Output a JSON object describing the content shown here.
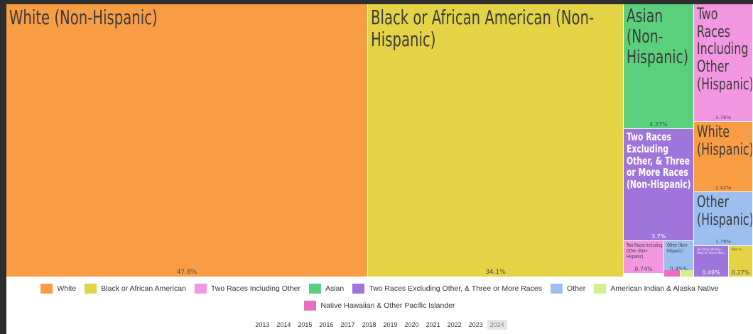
{
  "chart_data": {
    "type": "treemap",
    "tiles": [
      {
        "label": "White (Non-Hispanic)",
        "value_label": "47.8%",
        "value": 47.8,
        "group": "White"
      },
      {
        "label": "Black or African American (Non-Hispanic)",
        "value_label": "34.1%",
        "value": 34.1,
        "group": "Black or African American"
      },
      {
        "label": "Asian (Non-Hispanic)",
        "value_label": "4.27%",
        "value": 4.27,
        "group": "Asian"
      },
      {
        "label": "Two Races Excluding Other, & Three or More Races (Non-Hispanic)",
        "value_label": "3.7%",
        "value": 3.7,
        "group": "Two Races Excluding Other, & Three or More Races"
      },
      {
        "label": "Two Races Including Other (Non-Hispanic)",
        "value_label": "0.74%",
        "value": 0.74,
        "group": "Two Races Including Other"
      },
      {
        "label": "Other (Non-Hispanic)",
        "value_label": "0.45%",
        "value": 0.45,
        "group": "Other"
      },
      {
        "label": "",
        "value_label": "",
        "value": 0.2,
        "group": "Native Hawaiian & Other Pacific Islander"
      },
      {
        "label": "",
        "value_label": "",
        "value": 0.1,
        "group": "American Indian & Alaska Native"
      },
      {
        "label": "Two Races Including Other (Hispanic)",
        "value_label": "3.76%",
        "value": 3.76,
        "group": "Two Races Including Other"
      },
      {
        "label": "White (Hispanic)",
        "value_label": "2.42%",
        "value": 2.42,
        "group": "White"
      },
      {
        "label": "Other (Hispanic)",
        "value_label": "1.79%",
        "value": 1.79,
        "group": "Other"
      },
      {
        "label": "Two Races Excluding Other, & Three or More...",
        "value_label": "0.49%",
        "value": 0.49,
        "group": "Two Races Excluding Other, & Three or More Races"
      },
      {
        "label": "Black or...",
        "value_label": "0.27%",
        "value": 0.27,
        "group": "Black or African American"
      }
    ],
    "legend": [
      {
        "name": "White",
        "color": "#f99d45"
      },
      {
        "name": "Black or African American",
        "color": "#e3d345"
      },
      {
        "name": "Two Races Including Other",
        "color": "#f397e0"
      },
      {
        "name": "Asian",
        "color": "#5ad07d"
      },
      {
        "name": "Two Races Excluding Other, & Three or More Races",
        "color": "#9f75db"
      },
      {
        "name": "Other",
        "color": "#9cbff0"
      },
      {
        "name": "American Indian & Alaska Native",
        "color": "#d4ee8c"
      },
      {
        "name": "Native Hawaiian & Other Pacific Islander",
        "color": "#e86fbf"
      }
    ]
  },
  "years": [
    "2013",
    "2014",
    "2015",
    "2016",
    "2017",
    "2018",
    "2019",
    "2020",
    "2021",
    "2022",
    "2023",
    "2024"
  ],
  "selected_year": "2024"
}
